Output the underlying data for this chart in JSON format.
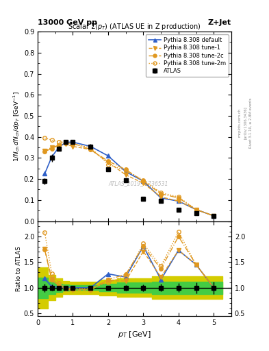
{
  "header_left": "13000 GeV pp",
  "header_right": "Z+Jet",
  "watermark": "ATLAS_2019_I1736531",
  "right_label_top": "Rivet 3.1.10, ≥ 2.8M events",
  "right_label_mid": "[arXiv:1306.3436]",
  "right_label_bot": "mcplots.cern.ch",
  "atlas_x": [
    0.2,
    0.4,
    0.6,
    0.8,
    1.0,
    1.5,
    2.0,
    2.5,
    3.0,
    3.5,
    4.0,
    4.5,
    5.0
  ],
  "atlas_y": [
    0.19,
    0.3,
    0.345,
    0.375,
    0.375,
    0.355,
    0.245,
    0.195,
    0.105,
    0.095,
    0.055,
    0.038,
    0.025
  ],
  "atlas_yerr": [
    0.015,
    0.018,
    0.012,
    0.01,
    0.01,
    0.01,
    0.01,
    0.01,
    0.007,
    0.007,
    0.005,
    0.004,
    0.003
  ],
  "py_def_x": [
    0.2,
    0.4,
    0.6,
    0.8,
    1.0,
    1.5,
    2.0,
    2.5,
    3.0,
    3.5,
    4.0,
    4.5,
    5.0
  ],
  "py_def_y": [
    0.225,
    0.305,
    0.35,
    0.375,
    0.375,
    0.355,
    0.31,
    0.235,
    0.19,
    0.11,
    0.095,
    0.055,
    0.025
  ],
  "py_t1_x": [
    0.2,
    0.4,
    0.6,
    0.8,
    1.0,
    1.5,
    2.0,
    2.5,
    3.0,
    3.5,
    4.0,
    4.5,
    5.0
  ],
  "py_t1_y": [
    0.335,
    0.35,
    0.36,
    0.365,
    0.355,
    0.34,
    0.28,
    0.22,
    0.18,
    0.115,
    0.095,
    0.055,
    0.025
  ],
  "py_t2c_x": [
    0.2,
    0.4,
    0.6,
    0.8,
    1.0,
    1.5,
    2.0,
    2.5,
    3.0,
    3.5,
    4.0,
    4.5,
    5.0
  ],
  "py_t2c_y": [
    0.33,
    0.345,
    0.36,
    0.37,
    0.37,
    0.34,
    0.285,
    0.245,
    0.19,
    0.13,
    0.11,
    0.055,
    0.025
  ],
  "py_t2m_x": [
    0.2,
    0.4,
    0.6,
    0.8,
    1.0,
    1.5,
    2.0,
    2.5,
    3.0,
    3.5,
    4.0,
    4.5,
    5.0
  ],
  "py_t2m_y": [
    0.395,
    0.385,
    0.375,
    0.375,
    0.365,
    0.35,
    0.27,
    0.24,
    0.195,
    0.135,
    0.115,
    0.055,
    0.025
  ],
  "ratio_x": [
    0.2,
    0.4,
    0.6,
    0.8,
    1.0,
    1.5,
    2.0,
    2.5,
    3.0,
    3.5,
    4.0,
    4.5,
    5.0
  ],
  "ratio_def_y": [
    1.18,
    1.02,
    1.01,
    1.0,
    1.0,
    1.0,
    1.27,
    1.21,
    1.81,
    1.16,
    1.73,
    1.45,
    1.0
  ],
  "ratio_t1_y": [
    1.76,
    1.17,
    1.04,
    0.97,
    0.95,
    0.96,
    1.14,
    1.13,
    1.71,
    1.21,
    1.73,
    1.45,
    1.0
  ],
  "ratio_t2c_y": [
    1.74,
    1.15,
    1.04,
    0.99,
    0.99,
    0.96,
    1.16,
    1.26,
    1.81,
    1.37,
    2.0,
    1.45,
    1.0
  ],
  "ratio_t2m_y": [
    2.08,
    1.28,
    1.09,
    1.0,
    0.97,
    0.99,
    1.1,
    1.23,
    1.86,
    1.42,
    2.09,
    1.45,
    1.0
  ],
  "band_x_lo": [
    0.0,
    0.3,
    0.5,
    0.7,
    0.9,
    1.25,
    1.75,
    2.25,
    2.75,
    3.25,
    3.75,
    4.25,
    4.75
  ],
  "band_x_hi": [
    0.3,
    0.5,
    0.7,
    0.9,
    1.25,
    1.75,
    2.25,
    2.75,
    3.25,
    3.75,
    4.25,
    4.75,
    5.25
  ],
  "band_green_lo": [
    0.8,
    0.88,
    0.92,
    0.94,
    0.95,
    0.95,
    0.93,
    0.9,
    0.9,
    0.88,
    0.88,
    0.88,
    0.88
  ],
  "band_green_hi": [
    1.2,
    1.12,
    1.08,
    1.06,
    1.05,
    1.05,
    1.07,
    1.1,
    1.1,
    1.12,
    1.12,
    1.12,
    1.12
  ],
  "band_yellow_lo": [
    0.6,
    0.75,
    0.82,
    0.87,
    0.88,
    0.88,
    0.85,
    0.82,
    0.82,
    0.78,
    0.78,
    0.78,
    0.78
  ],
  "band_yellow_hi": [
    1.4,
    1.25,
    1.18,
    1.13,
    1.12,
    1.12,
    1.15,
    1.18,
    1.18,
    1.22,
    1.22,
    1.22,
    1.22
  ],
  "color_blue": "#3060c8",
  "color_orange": "#e09820",
  "color_green": "#44cc44",
  "color_yellow": "#d4cc00",
  "ylim_main": [
    0.0,
    0.9
  ],
  "ylim_ratio": [
    0.45,
    2.3
  ],
  "xlim": [
    0.0,
    5.5
  ]
}
